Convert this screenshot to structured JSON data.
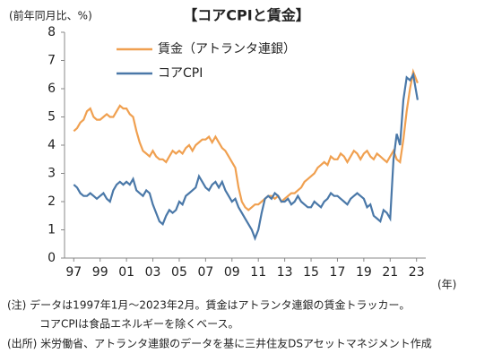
{
  "chart_data": {
    "type": "line",
    "title": "【コアCPIと賃金】",
    "y_label": "(前年同月比、%)",
    "x_label": "(年)",
    "notes": [
      "(注) データは1997年1月～2023年2月。賃金はアトランタ連銀の賃金トラッカー。",
      "コアCPIは食品エネルギーを除くベース。",
      "(出所) 米労働省、アトランタ連銀のデータを基に三井住友DSアセットマネジメント作成"
    ],
    "x": [
      1997,
      1997.25,
      1997.5,
      1997.75,
      1998,
      1998.25,
      1998.5,
      1998.75,
      1999,
      1999.25,
      1999.5,
      1999.75,
      2000,
      2000.25,
      2000.5,
      2000.75,
      2001,
      2001.25,
      2001.5,
      2001.75,
      2002,
      2002.25,
      2002.5,
      2002.75,
      2003,
      2003.25,
      2003.5,
      2003.75,
      2004,
      2004.25,
      2004.5,
      2004.75,
      2005,
      2005.25,
      2005.5,
      2005.75,
      2006,
      2006.25,
      2006.5,
      2006.75,
      2007,
      2007.25,
      2007.5,
      2007.75,
      2008,
      2008.25,
      2008.5,
      2008.75,
      2009,
      2009.25,
      2009.5,
      2009.75,
      2010,
      2010.25,
      2010.5,
      2010.75,
      2011,
      2011.25,
      2011.5,
      2011.75,
      2012,
      2012.25,
      2012.5,
      2012.75,
      2013,
      2013.25,
      2013.5,
      2013.75,
      2014,
      2014.25,
      2014.5,
      2014.75,
      2015,
      2015.25,
      2015.5,
      2015.75,
      2016,
      2016.25,
      2016.5,
      2016.75,
      2017,
      2017.25,
      2017.5,
      2017.75,
      2018,
      2018.25,
      2018.5,
      2018.75,
      2019,
      2019.25,
      2019.5,
      2019.75,
      2020,
      2020.25,
      2020.5,
      2020.75,
      2021,
      2021.25,
      2021.5,
      2021.75,
      2022,
      2022.25,
      2022.5,
      2022.75,
      2023.08
    ],
    "series": [
      {
        "name": "賃金（アトランタ連銀）",
        "color": "#f0a050",
        "values": [
          4.5,
          4.6,
          4.8,
          4.9,
          5.2,
          5.3,
          5.0,
          4.9,
          4.9,
          5.0,
          5.1,
          5.0,
          5.0,
          5.2,
          5.4,
          5.3,
          5.3,
          5.1,
          5.0,
          4.5,
          4.1,
          3.8,
          3.7,
          3.6,
          3.8,
          3.6,
          3.5,
          3.5,
          3.4,
          3.6,
          3.8,
          3.7,
          3.8,
          3.7,
          3.9,
          4.0,
          3.8,
          4.0,
          4.1,
          4.2,
          4.2,
          4.3,
          4.1,
          4.3,
          4.1,
          3.9,
          3.8,
          3.6,
          3.4,
          3.2,
          2.5,
          2.0,
          1.8,
          1.7,
          1.8,
          1.9,
          1.9,
          2.0,
          2.1,
          2.2,
          2.2,
          2.1,
          2.2,
          2.0,
          2.1,
          2.2,
          2.3,
          2.3,
          2.4,
          2.5,
          2.7,
          2.8,
          2.9,
          3.0,
          3.2,
          3.3,
          3.4,
          3.3,
          3.6,
          3.5,
          3.5,
          3.7,
          3.6,
          3.4,
          3.6,
          3.8,
          3.7,
          3.5,
          3.7,
          3.8,
          3.6,
          3.5,
          3.7,
          3.6,
          3.5,
          3.4,
          3.6,
          3.8,
          3.5,
          3.4,
          4.2,
          5.2,
          6.0,
          6.6,
          6.2
        ]
      },
      {
        "name": "コアCPI",
        "color": "#4a78a8",
        "values": [
          2.6,
          2.5,
          2.3,
          2.2,
          2.2,
          2.3,
          2.2,
          2.1,
          2.2,
          2.3,
          2.1,
          2.0,
          2.4,
          2.6,
          2.7,
          2.6,
          2.7,
          2.6,
          2.8,
          2.4,
          2.3,
          2.2,
          2.4,
          2.3,
          1.9,
          1.6,
          1.3,
          1.2,
          1.5,
          1.7,
          1.6,
          1.7,
          2.0,
          1.9,
          2.2,
          2.3,
          2.4,
          2.5,
          2.9,
          2.7,
          2.5,
          2.4,
          2.6,
          2.7,
          2.5,
          2.7,
          2.4,
          2.2,
          2.0,
          2.1,
          1.8,
          1.6,
          1.4,
          1.2,
          1.0,
          0.7,
          1.0,
          1.6,
          2.1,
          2.2,
          2.1,
          2.3,
          2.2,
          2.0,
          2.0,
          2.1,
          1.9,
          2.0,
          2.2,
          2.0,
          1.9,
          1.8,
          1.8,
          2.0,
          1.9,
          1.8,
          2.0,
          2.1,
          2.3,
          2.2,
          2.2,
          2.1,
          2.0,
          1.9,
          2.1,
          2.2,
          2.3,
          2.2,
          2.1,
          1.8,
          1.9,
          1.5,
          1.4,
          1.3,
          1.7,
          1.6,
          1.4,
          3.5,
          4.4,
          4.0,
          5.6,
          6.4,
          6.3,
          6.5,
          5.6
        ]
      }
    ],
    "xlim": [
      1996.3,
      2023.7
    ],
    "ylim": [
      0,
      8
    ],
    "xticks": [
      {
        "value": 1997,
        "label": "97"
      },
      {
        "value": 1999,
        "label": "99"
      },
      {
        "value": 2001,
        "label": "01"
      },
      {
        "value": 2003,
        "label": "03"
      },
      {
        "value": 2005,
        "label": "05"
      },
      {
        "value": 2007,
        "label": "07"
      },
      {
        "value": 2009,
        "label": "09"
      },
      {
        "value": 2011,
        "label": "11"
      },
      {
        "value": 2013,
        "label": "13"
      },
      {
        "value": 2015,
        "label": "15"
      },
      {
        "value": 2017,
        "label": "17"
      },
      {
        "value": 2019,
        "label": "19"
      },
      {
        "value": 2021,
        "label": "21"
      },
      {
        "value": 2023,
        "label": "23"
      }
    ],
    "yticks": [
      0,
      1,
      2,
      3,
      4,
      5,
      6,
      7,
      8
    ],
    "grid": false
  }
}
